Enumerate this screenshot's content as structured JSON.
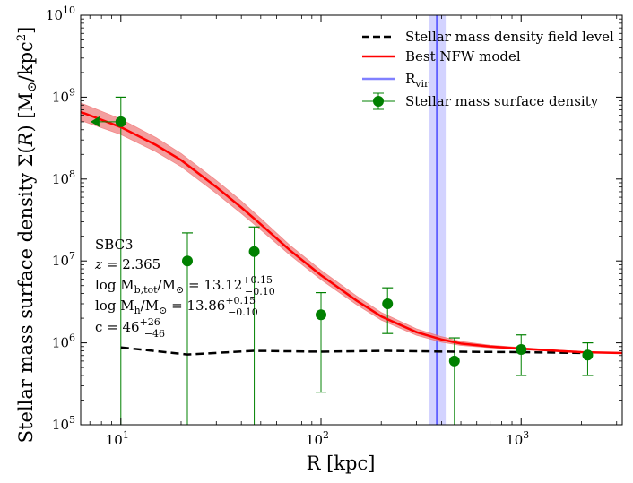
{
  "chart_data": {
    "type": "line",
    "xscale": "log",
    "yscale": "log",
    "xlim": [
      6.3,
      3200
    ],
    "ylim": [
      100000,
      10000000000
    ],
    "xlabel": "R [kpc]",
    "ylabel_parts": {
      "main": "Stellar mass surface density Σ(",
      "var": "R",
      "mid": ") [M",
      "sun": "⊙",
      "unit": "/kpc",
      "sup": "2",
      "end": "]"
    },
    "x_ticks": [
      {
        "value": 10,
        "base": "10",
        "exp": "1"
      },
      {
        "value": 100,
        "base": "10",
        "exp": "2"
      },
      {
        "value": 1000,
        "base": "10",
        "exp": "3"
      }
    ],
    "y_ticks": [
      {
        "value": 100000,
        "base": "10",
        "exp": "5"
      },
      {
        "value": 1000000,
        "base": "10",
        "exp": "6"
      },
      {
        "value": 10000000,
        "base": "10",
        "exp": "7"
      },
      {
        "value": 100000000,
        "base": "10",
        "exp": "8"
      },
      {
        "value": 1000000000,
        "base": "10",
        "exp": "9"
      },
      {
        "value": 10000000000,
        "base": "10",
        "exp": "10"
      }
    ],
    "series": [
      {
        "name": "Stellar mass density field level",
        "style": "dashed",
        "color": "#000000",
        "x": [
          10,
          21.5,
          46.4,
          100,
          215,
          464,
          1000,
          2150
        ],
        "y": [
          880000,
          720000,
          800000,
          780000,
          800000,
          780000,
          770000,
          750000
        ]
      },
      {
        "name": "Best NFW model",
        "style": "solid",
        "color": "#ff0000",
        "band_color": "#f08080",
        "x": [
          6.3,
          10,
          15,
          20,
          30,
          40,
          50,
          70,
          100,
          150,
          200,
          300,
          400,
          500,
          700,
          1000,
          1500,
          2000,
          3200
        ],
        "y": [
          660000000,
          430000000,
          260000000,
          170000000,
          80000000,
          45000000,
          28000000,
          13500000,
          6700000,
          3300000,
          2100000,
          1350000,
          1100000,
          980000,
          900000,
          850000,
          800000,
          770000,
          750000
        ],
        "lower": [
          520000000,
          350000000,
          215000000,
          142000000,
          67000000,
          38000000,
          24000000,
          11800000,
          5900000,
          2950000,
          1900000,
          1240000,
          1020000,
          930000,
          870000,
          825000,
          785000,
          760000,
          740000
        ],
        "upper": [
          850000000,
          540000000,
          320000000,
          205000000,
          96000000,
          54000000,
          33000000,
          15500000,
          7700000,
          3750000,
          2350000,
          1480000,
          1190000,
          1040000,
          935000,
          875000,
          815000,
          780000,
          760000
        ]
      },
      {
        "name": "R",
        "name_sub": "vir",
        "type": "vline",
        "color": "#6060ff",
        "x": 380,
        "x_low": 345,
        "x_high": 420
      },
      {
        "name": "Stellar mass surface density",
        "type": "errorbar",
        "color": "#008000",
        "points": [
          {
            "x": 10,
            "y": 500000000,
            "ylo": 100000,
            "yhi": 1000000000
          },
          {
            "x": 21.5,
            "y": 10000000,
            "ylo": 100000,
            "yhi": 22000000
          },
          {
            "x": 46.4,
            "y": 13000000,
            "ylo": 100000,
            "yhi": 26000000
          },
          {
            "x": 100,
            "y": 2200000,
            "ylo": 250000,
            "yhi": 4100000
          },
          {
            "x": 215,
            "y": 3000000,
            "ylo": 1300000,
            "yhi": 4700000
          },
          {
            "x": 464,
            "y": 600000,
            "ylo": 100000,
            "yhi": 1150000
          },
          {
            "x": 1000,
            "y": 830000,
            "ylo": 400000,
            "yhi": 1250000
          },
          {
            "x": 2150,
            "y": 710000,
            "ylo": 400000,
            "yhi": 1000000
          }
        ],
        "upper_limit_marker": {
          "x": 7.5,
          "y": 500000000
        }
      }
    ],
    "annotation": {
      "name": "SBC3",
      "z_label": "z",
      "z_value": "= 2.365",
      "mb_label": "log M",
      "mb_sub": "b,tot",
      "mb_slash": "/M",
      "mb_sun": "⊙",
      "mb_val": " = 13.12",
      "mb_up": "+0.15",
      "mb_down": "−0.10",
      "mh_label": "log M",
      "mh_sub": "h",
      "mh_slash": "/M",
      "mh_sun": "⊙",
      "mh_val": " = 13.86",
      "mh_up": "+0.15",
      "mh_down": "−0.10",
      "c_label": "c = 46",
      "c_up": "+26",
      "c_down": "−46"
    },
    "legend": {
      "position": "top-right"
    }
  }
}
